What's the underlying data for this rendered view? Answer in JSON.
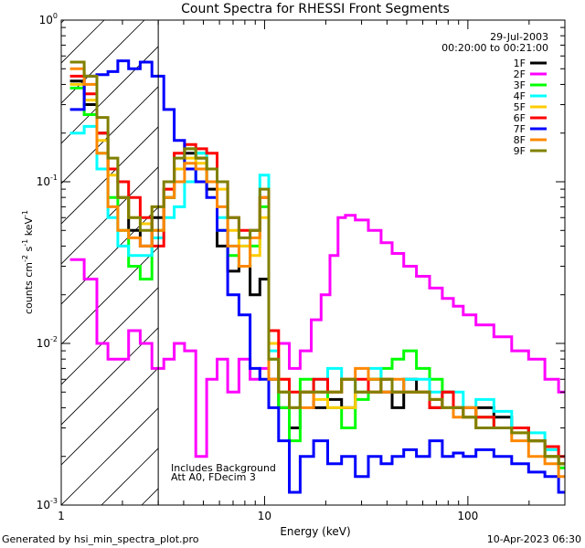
{
  "chart_data": {
    "type": "line",
    "title": "Count Spectra for RHESSI Front Segments",
    "xlabel": "Energy (keV)",
    "ylabel": {
      "prefix": "counts cm",
      "exp1": "-2",
      "mid1": " s",
      "exp2": "-1",
      "mid2": " keV",
      "exp3": "-1"
    },
    "xscale": "log",
    "yscale": "log",
    "xlim": [
      1.0,
      300.0
    ],
    "ylim": [
      0.001,
      1.0
    ],
    "date": "29-Jul-2003",
    "time_range": "00:20:00 to 00:21:00",
    "attenuator_note": "Includes Background",
    "decimation_note": "Att A0, FDecim 3",
    "shaded_region": {
      "from": 1.0,
      "to": 3.0,
      "style": "diagonal hatch"
    },
    "xticks": [
      {
        "value": 1,
        "label": "1"
      },
      {
        "value": 10,
        "label": "10"
      },
      {
        "value": 100,
        "label": "100"
      }
    ],
    "yticks": [
      {
        "value": 1,
        "base": "10",
        "exp": "0"
      },
      {
        "value": 0.1,
        "base": "10",
        "exp": "-1"
      },
      {
        "value": 0.01,
        "base": "10",
        "exp": "-2"
      },
      {
        "value": 0.001,
        "base": "10",
        "exp": "-3"
      }
    ],
    "series": [
      {
        "name": "1F",
        "color": "#000000",
        "x": [
          1.2,
          1.4,
          1.6,
          1.8,
          2.0,
          2.3,
          2.6,
          3.0,
          3.4,
          3.8,
          4.3,
          4.9,
          5.5,
          6.2,
          7.0,
          8.0,
          9.0,
          10.0,
          11.0,
          12.5,
          14,
          16,
          19,
          22,
          26,
          30,
          35,
          40,
          45,
          52,
          60,
          70,
          80,
          90,
          100,
          120,
          150,
          180,
          220,
          260,
          300
        ],
        "y": [
          0.42,
          0.3,
          0.2,
          0.12,
          0.08,
          0.05,
          0.04,
          0.06,
          0.08,
          0.12,
          0.15,
          0.14,
          0.09,
          0.04,
          0.028,
          0.03,
          0.02,
          0.025,
          0.006,
          0.004,
          0.003,
          0.005,
          0.004,
          0.0045,
          0.004,
          0.005,
          0.006,
          0.005,
          0.004,
          0.006,
          0.005,
          0.004,
          0.005,
          0.004,
          0.0035,
          0.004,
          0.0035,
          0.003,
          0.0025,
          0.002,
          0.0018
        ]
      },
      {
        "name": "2F",
        "color": "#ff00ff",
        "x": [
          1.2,
          1.4,
          1.6,
          1.8,
          2.0,
          2.3,
          2.6,
          3.0,
          3.4,
          3.8,
          4.3,
          4.9,
          5.5,
          6.2,
          7.0,
          8.0,
          9.0,
          10.0,
          11.0,
          12.5,
          14,
          16,
          18,
          20,
          22,
          24,
          26,
          30,
          35,
          40,
          45,
          52,
          60,
          70,
          80,
          90,
          100,
          120,
          150,
          180,
          220,
          260,
          300
        ],
        "y": [
          0.033,
          0.025,
          0.01,
          0.008,
          0.008,
          0.012,
          0.01,
          0.007,
          0.008,
          0.01,
          0.009,
          0.002,
          0.006,
          0.008,
          0.005,
          0.008,
          0.006,
          0.007,
          0.01,
          0.01,
          0.007,
          0.009,
          0.014,
          0.02,
          0.035,
          0.06,
          0.062,
          0.058,
          0.05,
          0.042,
          0.036,
          0.03,
          0.026,
          0.022,
          0.019,
          0.017,
          0.015,
          0.013,
          0.011,
          0.009,
          0.008,
          0.006,
          0.005
        ]
      },
      {
        "name": "3F",
        "color": "#00ff00",
        "x": [
          1.2,
          1.4,
          1.6,
          1.8,
          2.0,
          2.3,
          2.6,
          3.0,
          3.4,
          3.8,
          4.3,
          4.9,
          5.5,
          6.2,
          7.0,
          8.0,
          9.0,
          10.0,
          11.0,
          12.5,
          14,
          16,
          19,
          22,
          26,
          30,
          35,
          40,
          45,
          52,
          60,
          70,
          80,
          90,
          100,
          120,
          150,
          180,
          220,
          260,
          300
        ],
        "y": [
          0.38,
          0.26,
          0.15,
          0.08,
          0.05,
          0.03,
          0.025,
          0.05,
          0.08,
          0.12,
          0.16,
          0.15,
          0.1,
          0.05,
          0.035,
          0.03,
          0.04,
          0.07,
          0.008,
          0.004,
          0.0025,
          0.006,
          0.005,
          0.004,
          0.003,
          0.0045,
          0.006,
          0.007,
          0.008,
          0.009,
          0.007,
          0.006,
          0.005,
          0.004,
          0.004,
          0.0035,
          0.003,
          0.003,
          0.0025,
          0.002,
          0.0017
        ]
      },
      {
        "name": "4F",
        "color": "#00ffff",
        "x": [
          1.2,
          1.4,
          1.6,
          1.8,
          2.0,
          2.3,
          2.6,
          3.0,
          3.4,
          3.8,
          4.3,
          4.9,
          5.5,
          6.2,
          7.0,
          8.0,
          9.0,
          10.0,
          11.0,
          12.5,
          14,
          16,
          19,
          22,
          26,
          30,
          35,
          40,
          45,
          52,
          60,
          70,
          80,
          90,
          100,
          120,
          150,
          180,
          220,
          260,
          300
        ],
        "y": [
          0.2,
          0.22,
          0.12,
          0.06,
          0.04,
          0.035,
          0.035,
          0.045,
          0.06,
          0.07,
          0.1,
          0.15,
          0.12,
          0.06,
          0.04,
          0.04,
          0.05,
          0.11,
          0.009,
          0.005,
          0.004,
          0.005,
          0.006,
          0.007,
          0.006,
          0.005,
          0.007,
          0.006,
          0.005,
          0.006,
          0.006,
          0.005,
          0.004,
          0.005,
          0.004,
          0.0045,
          0.0038,
          0.003,
          0.0028,
          0.0022,
          0.002
        ]
      },
      {
        "name": "5F",
        "color": "#ffcc00",
        "x": [
          1.2,
          1.4,
          1.6,
          1.8,
          2.0,
          2.3,
          2.6,
          3.0,
          3.4,
          3.8,
          4.3,
          4.9,
          5.5,
          6.2,
          7.0,
          8.0,
          9.0,
          10.0,
          11.0,
          12.5,
          14,
          16,
          19,
          22,
          26,
          30,
          35,
          40,
          45,
          52,
          60,
          70,
          80,
          90,
          100,
          120,
          150,
          180,
          220,
          260,
          300
        ],
        "y": [
          0.4,
          0.32,
          0.18,
          0.11,
          0.08,
          0.06,
          0.055,
          0.07,
          0.09,
          0.12,
          0.14,
          0.13,
          0.12,
          0.09,
          0.05,
          0.04,
          0.035,
          0.06,
          0.01,
          0.006,
          0.004,
          0.005,
          0.0045,
          0.004,
          0.004,
          0.005,
          0.005,
          0.006,
          0.005,
          0.005,
          0.005,
          0.0045,
          0.004,
          0.004,
          0.0035,
          0.003,
          0.003,
          0.0028,
          0.0025,
          0.002,
          0.0018
        ]
      },
      {
        "name": "6F",
        "color": "#ff0000",
        "x": [
          1.2,
          1.4,
          1.6,
          1.8,
          2.0,
          2.3,
          2.6,
          3.0,
          3.4,
          3.8,
          4.3,
          4.9,
          5.5,
          6.2,
          7.0,
          8.0,
          9.0,
          10.0,
          11.0,
          12.5,
          14,
          16,
          19,
          22,
          26,
          30,
          35,
          40,
          45,
          52,
          60,
          70,
          80,
          90,
          100,
          120,
          150,
          180,
          220,
          260,
          300
        ],
        "y": [
          0.45,
          0.35,
          0.2,
          0.12,
          0.1,
          0.08,
          0.06,
          0.04,
          0.09,
          0.15,
          0.17,
          0.16,
          0.15,
          0.1,
          0.06,
          0.05,
          0.05,
          0.08,
          0.012,
          0.006,
          0.005,
          0.005,
          0.006,
          0.005,
          0.006,
          0.006,
          0.005,
          0.006,
          0.005,
          0.005,
          0.005,
          0.004,
          0.005,
          0.004,
          0.004,
          0.0035,
          0.003,
          0.003,
          0.0025,
          0.0023,
          0.002
        ]
      },
      {
        "name": "7F",
        "color": "#0000ff",
        "x": [
          1.2,
          1.4,
          1.6,
          1.8,
          2.0,
          2.3,
          2.6,
          3.0,
          3.4,
          3.8,
          4.3,
          4.9,
          5.5,
          6.2,
          7.0,
          8.0,
          9.0,
          10.0,
          11.0,
          12.5,
          14,
          16,
          19,
          22,
          26,
          30,
          35,
          40,
          45,
          52,
          60,
          70,
          80,
          90,
          100,
          120,
          150,
          180,
          220,
          260,
          300
        ],
        "y": [
          0.28,
          0.45,
          0.46,
          0.48,
          0.56,
          0.5,
          0.55,
          0.45,
          0.28,
          0.18,
          0.12,
          0.1,
          0.08,
          0.05,
          0.02,
          0.015,
          0.007,
          0.006,
          0.004,
          0.0025,
          0.0012,
          0.002,
          0.0025,
          0.0018,
          0.002,
          0.0015,
          0.002,
          0.0018,
          0.002,
          0.0022,
          0.002,
          0.0025,
          0.002,
          0.0021,
          0.002,
          0.0022,
          0.002,
          0.0018,
          0.0016,
          0.0015,
          0.0012
        ]
      },
      {
        "name": "8F",
        "color": "#ff8800",
        "x": [
          1.2,
          1.4,
          1.6,
          1.8,
          2.0,
          2.3,
          2.6,
          3.0,
          3.4,
          3.8,
          4.3,
          4.9,
          5.5,
          6.2,
          7.0,
          8.0,
          9.0,
          10.0,
          11.0,
          12.5,
          14,
          16,
          19,
          22,
          26,
          30,
          35,
          40,
          45,
          52,
          60,
          70,
          80,
          90,
          100,
          120,
          150,
          180,
          220,
          260,
          300
        ],
        "y": [
          0.5,
          0.4,
          0.15,
          0.07,
          0.05,
          0.045,
          0.04,
          0.05,
          0.08,
          0.1,
          0.13,
          0.12,
          0.1,
          0.07,
          0.04,
          0.03,
          0.045,
          0.08,
          0.006,
          0.005,
          0.004,
          0.004,
          0.005,
          0.005,
          0.006,
          0.007,
          0.006,
          0.005,
          0.006,
          0.005,
          0.005,
          0.0045,
          0.004,
          0.0035,
          0.004,
          0.003,
          0.003,
          0.0025,
          0.002,
          0.0018,
          0.0015
        ]
      },
      {
        "name": "9F",
        "color": "#808000",
        "x": [
          1.2,
          1.4,
          1.6,
          1.8,
          2.0,
          2.3,
          2.6,
          3.0,
          3.4,
          3.8,
          4.3,
          4.9,
          5.5,
          6.2,
          7.0,
          8.0,
          9.0,
          10.0,
          11.0,
          12.5,
          14,
          16,
          19,
          22,
          26,
          30,
          35,
          40,
          45,
          52,
          60,
          70,
          80,
          90,
          100,
          120,
          150,
          180,
          220,
          260,
          300
        ],
        "y": [
          0.55,
          0.45,
          0.25,
          0.14,
          0.08,
          0.06,
          0.05,
          0.07,
          0.1,
          0.14,
          0.16,
          0.14,
          0.12,
          0.1,
          0.06,
          0.045,
          0.05,
          0.09,
          0.008,
          0.005,
          0.004,
          0.005,
          0.005,
          0.005,
          0.006,
          0.005,
          0.005,
          0.006,
          0.005,
          0.005,
          0.005,
          0.0045,
          0.004,
          0.004,
          0.0035,
          0.003,
          0.003,
          0.0028,
          0.0025,
          0.002,
          0.0018
        ]
      }
    ]
  },
  "footer": {
    "generator": "Generated by hsi_min_spectra_plot.pro",
    "timestamp": "10-Apr-2023 06:30"
  }
}
